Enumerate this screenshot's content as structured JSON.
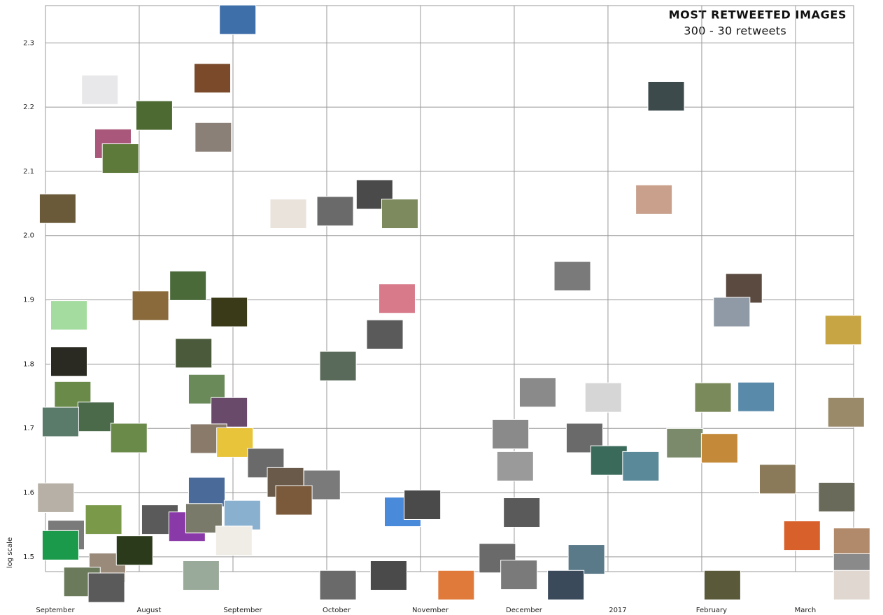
{
  "chart_data": {
    "type": "scatter",
    "title": "MOST RETWEETED IMAGES",
    "subtitle": "300 - 30 retweets",
    "y_label": "log scale",
    "xlim": [
      0,
      8.62
    ],
    "xticks": [
      {
        "value": 0,
        "label": "September"
      },
      {
        "value": 1,
        "label": "August"
      },
      {
        "value": 2,
        "label": "September"
      },
      {
        "value": 3,
        "label": "October"
      },
      {
        "value": 4,
        "label": "November"
      },
      {
        "value": 5,
        "label": "December"
      },
      {
        "value": 6,
        "label": "2017"
      },
      {
        "value": 7,
        "label": "February"
      },
      {
        "value": 8,
        "label": "March"
      }
    ],
    "ylim": [
      1.477,
      2.358
    ],
    "yticks": [
      1.5,
      1.6,
      1.7,
      1.8,
      1.9,
      {
        "value": 2,
        "label": "2.0"
      },
      2.1,
      2.2,
      2.3
    ],
    "grid": true,
    "x": [
      2.05,
      0.58,
      1.78,
      1.16,
      1.79,
      0.72,
      0.8,
      0.13,
      2.59,
      3.09,
      3.51,
      3.78,
      6.62,
      6.49,
      5.62,
      7.45,
      7.32,
      8.51,
      0.25,
      1.12,
      1.52,
      1.96,
      3.75,
      3.62,
      0.25,
      1.58,
      3.12,
      0.29,
      1.72,
      0.54,
      0.16,
      1.96,
      0.89,
      1.74,
      2.02,
      5.25,
      5.95,
      7.12,
      7.58,
      8.54,
      4.96,
      5.75,
      5.01,
      6.01,
      6.35,
      6.82,
      7.19,
      7.81,
      0.11,
      1.72,
      2.35,
      2.56,
      2.95,
      2.65,
      3.81,
      4.02,
      5.08,
      0.62,
      1.22,
      1.51,
      2.1,
      1.69,
      2.01,
      0.22,
      0.16,
      0.66,
      0.95,
      8.07,
      8.6,
      8.44,
      0.39,
      0.65,
      1.66,
      3.12,
      3.66,
      4.38,
      4.82,
      5.05,
      5.77,
      5.55,
      7.22,
      8.6,
      8.6
    ],
    "values": [
      2.336,
      2.227,
      2.245,
      2.187,
      2.153,
      2.143,
      2.12,
      2.042,
      2.034,
      2.038,
      2.064,
      2.034,
      2.217,
      2.056,
      1.937,
      1.918,
      1.881,
      1.853,
      1.876,
      1.891,
      1.922,
      1.881,
      1.902,
      1.846,
      1.804,
      1.817,
      1.797,
      1.75,
      1.761,
      1.718,
      1.71,
      1.725,
      1.685,
      1.684,
      1.678,
      1.756,
      1.748,
      1.748,
      1.749,
      1.725,
      1.691,
      1.685,
      1.641,
      1.65,
      1.641,
      1.677,
      1.669,
      1.621,
      1.592,
      1.601,
      1.646,
      1.616,
      1.612,
      1.588,
      1.57,
      1.581,
      1.569,
      1.558,
      1.558,
      1.547,
      1.565,
      1.56,
      1.525,
      1.534,
      1.518,
      1.483,
      1.51,
      1.533,
      1.522,
      1.593,
      1.461,
      1.452,
      1.471,
      1.456,
      1.471,
      1.456,
      1.498,
      1.472,
      1.496,
      1.456,
      1.456,
      1.482,
      1.456
    ],
    "colors": [
      "#3f6fa8",
      "#e8e8ea",
      "#7a4a2a",
      "#4e6a33",
      "#8a8078",
      "#a9577a",
      "#5e7a3a",
      "#6a5a3a",
      "#e9e3dc",
      "#6a6a6a",
      "#4a4a4a",
      "#7d8a5e",
      "#3c4a4c",
      "#c9a08c",
      "#7a7a7a",
      "#5a4a40",
      "#8f9aa6",
      "#c7a544",
      "#a4dca0",
      "#8a6a3a",
      "#4b6a3a",
      "#3a3a18",
      "#d87a8a",
      "#5a5a5a",
      "#2a2a22",
      "#4a5a3a",
      "#5a6a5a",
      "#6a8a4a",
      "#6a8a5a",
      "#4a6a4a",
      "#5a7a6a",
      "#6a4a6a",
      "#6a8a4a",
      "#8a7a6a",
      "#e8c43a",
      "#8a8a8a",
      "#d6d6d6",
      "#7a8a5a",
      "#5a8aaa",
      "#9a8a6a",
      "#8a8a8a",
      "#6a6a6a",
      "#9a9a9a",
      "#3a6a5a",
      "#5a8a9a",
      "#7a8a6a",
      "#c48a3a",
      "#8a7a5a",
      "#b6b0a6",
      "#4a6a9a",
      "#6a6a6a",
      "#6a5a4a",
      "#7a7a7a",
      "#7a5a3a",
      "#4a8ada",
      "#4a4a4a",
      "#5a5a5a",
      "#7a9a4a",
      "#5a5a5a",
      "#8a3aa8",
      "#8ab0d0",
      "#7a7a6a",
      "#f0ece6",
      "#7a7a7a",
      "#1a9a4a",
      "#9a8a7a",
      "#2a3a1a",
      "#d8602a",
      "#b08a6a",
      "#6a6a5a",
      "#6a7a5a",
      "#5a5a5a",
      "#9aaa9a",
      "#6a6a6a",
      "#4a4a4a",
      "#e07a3a",
      "#6a6a6a",
      "#7a7a7a",
      "#5a7a8a",
      "#3a4a5a",
      "#5a5a3a",
      "#8a8a8a",
      "#e0d8d0"
    ]
  }
}
